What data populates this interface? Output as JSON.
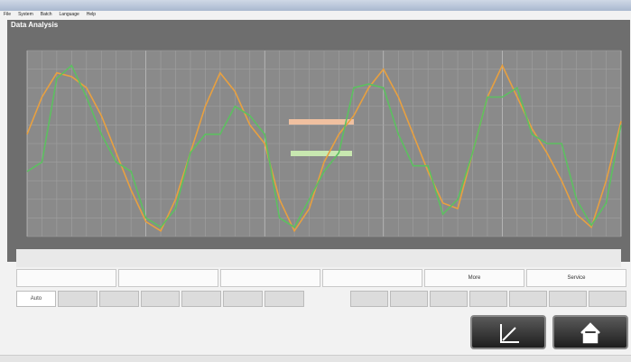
{
  "menu": [
    "File",
    "System",
    "Batch",
    "Language",
    "Help"
  ],
  "header": {
    "title": "Data Analysis"
  },
  "buttons": [
    "More",
    "Service"
  ],
  "tabs": [
    "Auto"
  ],
  "chart_data": {
    "type": "line",
    "ylim": [
      0,
      100
    ],
    "series": [
      {
        "color": "#e8a040",
        "values": [
          55,
          75,
          88,
          86,
          80,
          65,
          45,
          25,
          8,
          3,
          20,
          45,
          70,
          88,
          78,
          60,
          50,
          20,
          3,
          15,
          40,
          55,
          65,
          80,
          90,
          75,
          55,
          35,
          18,
          15,
          45,
          75,
          92,
          75,
          58,
          45,
          30,
          12,
          5,
          30,
          62
        ]
      },
      {
        "color": "#5cc060",
        "values": [
          35,
          40,
          85,
          92,
          75,
          55,
          40,
          35,
          10,
          5,
          15,
          45,
          55,
          55,
          70,
          65,
          55,
          10,
          5,
          20,
          35,
          45,
          80,
          82,
          80,
          55,
          38,
          38,
          12,
          20,
          45,
          75,
          75,
          80,
          55,
          50,
          50,
          20,
          6,
          18,
          60
        ]
      }
    ]
  }
}
